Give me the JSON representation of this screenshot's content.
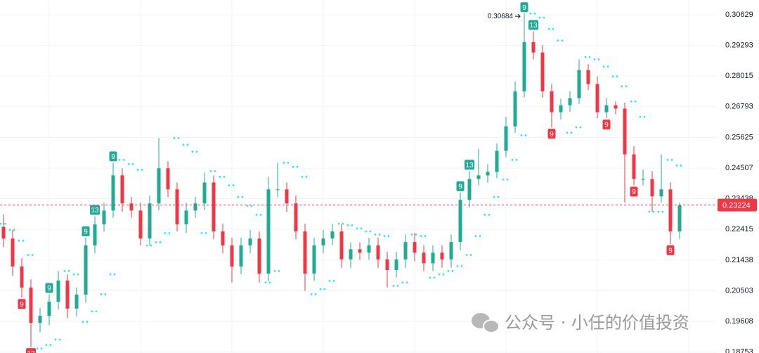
{
  "chart_data": {
    "type": "candlestick",
    "ylim": [
      0.1873,
      0.3129
    ],
    "log_scale": true,
    "grid": true,
    "yticks": [
      0.30629,
      0.29293,
      0.28015,
      0.26793,
      0.25625,
      0.24507,
      0.23438,
      0.22415,
      0.21438,
      0.20503,
      0.19608,
      0.18753
    ],
    "up_color": "#22ab94",
    "down_color": "#f23645",
    "sar_color": "#2ee6f5",
    "open": [
      0.225,
      0.2212,
      0.2124,
      0.206,
      0.1957,
      0.1977,
      0.2018,
      0.2081,
      0.1998,
      0.2039,
      0.219,
      0.2258,
      0.2304,
      0.2425,
      0.2328,
      0.2304,
      0.2212,
      0.2328,
      0.245,
      0.2376,
      0.2258,
      0.2304,
      0.2328,
      0.24,
      0.2235,
      0.219,
      0.2124,
      0.219,
      0.2212,
      0.2102,
      0.2376,
      0.2376,
      0.2328,
      0.2235,
      0.2102,
      0.219,
      0.2212,
      0.2235,
      0.2146,
      0.2178,
      0.2167,
      0.219,
      0.2146,
      0.2113,
      0.2146,
      0.2201,
      0.2167,
      0.2134,
      0.2167,
      0.2146,
      0.2201,
      0.234,
      0.2412,
      0.2425,
      0.2437,
      0.2513,
      0.2604,
      0.274,
      0.2943,
      0.2899,
      0.274,
      0.2658,
      0.2685,
      0.2713,
      0.2826,
      0.2769,
      0.2658,
      0.2685,
      0.2672,
      0.25,
      0.2412,
      0.2412,
      0.2352,
      0.2376,
      0.2235
    ],
    "high": [
      0.229,
      0.224,
      0.215,
      0.2085,
      0.2,
      0.204,
      0.211,
      0.21,
      0.206,
      0.2215,
      0.2285,
      0.233,
      0.247,
      0.245,
      0.235,
      0.233,
      0.2355,
      0.256,
      0.2475,
      0.24,
      0.233,
      0.235,
      0.2435,
      0.2425,
      0.226,
      0.2215,
      0.2215,
      0.224,
      0.2235,
      0.242,
      0.247,
      0.24,
      0.2355,
      0.226,
      0.2215,
      0.224,
      0.226,
      0.226,
      0.22,
      0.22,
      0.2215,
      0.2215,
      0.217,
      0.217,
      0.2225,
      0.223,
      0.219,
      0.219,
      0.219,
      0.2225,
      0.2365,
      0.244,
      0.252,
      0.2465,
      0.254,
      0.264,
      0.278,
      0.3068,
      0.299,
      0.293,
      0.277,
      0.271,
      0.274,
      0.287,
      0.285,
      0.28,
      0.2715,
      0.27,
      0.2695,
      0.253,
      0.2445,
      0.244,
      0.25,
      0.24,
      0.233
    ],
    "low": [
      0.2185,
      0.2095,
      0.203,
      0.189,
      0.193,
      0.195,
      0.1995,
      0.197,
      0.1975,
      0.2015,
      0.2165,
      0.2235,
      0.228,
      0.23,
      0.228,
      0.219,
      0.219,
      0.2305,
      0.235,
      0.2235,
      0.223,
      0.228,
      0.2305,
      0.221,
      0.2165,
      0.2075,
      0.21,
      0.2165,
      0.2075,
      0.208,
      0.235,
      0.23,
      0.221,
      0.205,
      0.208,
      0.2165,
      0.219,
      0.212,
      0.212,
      0.2145,
      0.2145,
      0.212,
      0.206,
      0.209,
      0.212,
      0.214,
      0.211,
      0.211,
      0.212,
      0.212,
      0.2175,
      0.2315,
      0.239,
      0.24,
      0.2415,
      0.249,
      0.258,
      0.2715,
      0.287,
      0.2715,
      0.26,
      0.263,
      0.266,
      0.269,
      0.2745,
      0.2635,
      0.2635,
      0.265,
      0.233,
      0.239,
      0.239,
      0.23,
      0.233,
      0.2195,
      0.221
    ],
    "close": [
      0.2212,
      0.2124,
      0.206,
      0.1957,
      0.1977,
      0.2018,
      0.2081,
      0.1998,
      0.2039,
      0.219,
      0.2258,
      0.2304,
      0.2425,
      0.2328,
      0.2304,
      0.2212,
      0.2328,
      0.245,
      0.2376,
      0.2258,
      0.2304,
      0.2328,
      0.24,
      0.2235,
      0.219,
      0.2124,
      0.219,
      0.2212,
      0.2102,
      0.2376,
      0.2376,
      0.2328,
      0.2235,
      0.2102,
      0.219,
      0.2212,
      0.2235,
      0.2146,
      0.2178,
      0.2167,
      0.219,
      0.2146,
      0.2113,
      0.2146,
      0.2201,
      0.2167,
      0.2134,
      0.2167,
      0.2146,
      0.2201,
      0.234,
      0.2412,
      0.2425,
      0.2437,
      0.2513,
      0.2604,
      0.274,
      0.2943,
      0.2899,
      0.274,
      0.2658,
      0.2685,
      0.2713,
      0.2826,
      0.2769,
      0.2658,
      0.2685,
      0.2672,
      0.25,
      0.2412,
      0.2412,
      0.2352,
      0.2376,
      0.2235,
      0.2322
    ],
    "sar": [
      0.226,
      0.224,
      0.2205,
      0.216,
      0.1885,
      0.1895,
      0.191,
      0.211,
      0.21,
      0.196,
      0.199,
      0.204,
      0.21,
      0.248,
      0.2465,
      0.2445,
      0.219,
      0.22,
      0.223,
      0.256,
      0.2535,
      0.251,
      0.223,
      0.244,
      0.242,
      0.239,
      0.235,
      0.232,
      0.229,
      0.2075,
      0.211,
      0.247,
      0.2455,
      0.242,
      0.204,
      0.2055,
      0.208,
      0.226,
      0.2255,
      0.2245,
      0.2235,
      0.2225,
      0.222,
      0.2065,
      0.2075,
      0.2225,
      0.222,
      0.209,
      0.21,
      0.211,
      0.2125,
      0.216,
      0.222,
      0.229,
      0.235,
      0.241,
      0.248,
      0.257,
      0.3068,
      0.305,
      0.3,
      0.295,
      0.258,
      0.26,
      0.288,
      0.287,
      0.284,
      0.28,
      0.276,
      0.27,
      0.264,
      0.23,
      0.23,
      0.248,
      0.246
    ],
    "td_up": [
      null,
      null,
      null,
      null,
      null,
      "9",
      null,
      null,
      null,
      "9",
      "13",
      null,
      "9",
      null,
      null,
      null,
      null,
      null,
      null,
      null,
      null,
      null,
      null,
      null,
      null,
      null,
      null,
      null,
      null,
      null,
      null,
      null,
      null,
      null,
      null,
      null,
      null,
      null,
      null,
      null,
      null,
      null,
      null,
      null,
      null,
      null,
      null,
      null,
      null,
      null,
      "9",
      "13",
      null,
      null,
      null,
      null,
      null,
      "9",
      "13",
      null,
      null,
      null,
      null,
      null,
      null,
      null,
      null,
      null,
      null,
      null,
      null,
      null,
      null,
      null,
      null
    ],
    "td_down": [
      null,
      null,
      "9",
      "13",
      null,
      null,
      null,
      null,
      null,
      null,
      null,
      null,
      null,
      null,
      null,
      null,
      null,
      null,
      null,
      null,
      null,
      null,
      null,
      null,
      null,
      null,
      null,
      null,
      null,
      null,
      null,
      null,
      null,
      null,
      null,
      null,
      null,
      null,
      null,
      null,
      null,
      null,
      null,
      null,
      null,
      null,
      null,
      null,
      null,
      null,
      null,
      null,
      null,
      null,
      null,
      null,
      null,
      null,
      null,
      null,
      "9",
      null,
      null,
      null,
      null,
      null,
      "9",
      null,
      null,
      "9",
      null,
      null,
      null,
      "9",
      null
    ],
    "last_price": 0.23224,
    "last_price_color": "#f23645",
    "high_marker": 0.30684,
    "watermark": "公众号 · 小任的价值投资"
  }
}
